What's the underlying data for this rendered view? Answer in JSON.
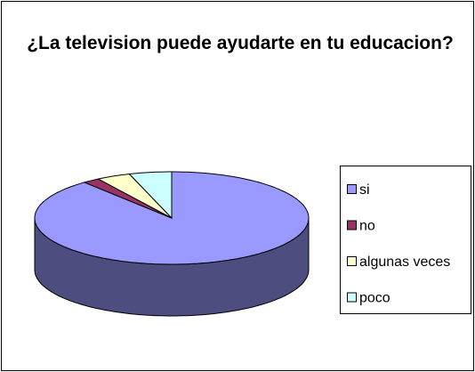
{
  "chart_data": {
    "type": "pie3d",
    "title": "¿La television puede ayudarte en tu educacion?",
    "categories": [
      "si",
      "no",
      "algunas veces",
      "poco"
    ],
    "values": [
      89,
      2,
      4,
      5
    ],
    "colors": [
      "#9999ff",
      "#993366",
      "#ffffcc",
      "#ccffff"
    ],
    "legend": "right"
  }
}
